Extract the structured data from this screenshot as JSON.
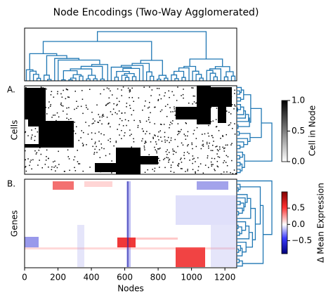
{
  "title": "Node Encodings (Two-Way Agglomerated)",
  "chart_data": [
    {
      "type": "heatmap",
      "panel_label": "A.",
      "ylabel": "Cells",
      "colorbar": {
        "label": "Cell in Node",
        "lim": [
          0,
          1
        ],
        "ticks": [
          {
            "value": 0,
            "label": "0.0"
          },
          0.5,
          {
            "value": 1,
            "label": "1.0"
          }
        ]
      }
    },
    {
      "type": "heatmap",
      "panel_label": "B.",
      "ylabel": "Genes",
      "xlabel": "Nodes",
      "xlim": [
        0,
        1271
      ],
      "xticks": [
        0,
        200,
        400,
        600,
        800,
        1000,
        1200
      ],
      "colorbar": {
        "label": "Δ Mean Expression",
        "lim": [
          -0.9,
          1.0
        ],
        "ticks": [
          {
            "value": -0.5,
            "label": "−0.5"
          },
          {
            "value": 0,
            "label": "0.0"
          },
          0.5
        ]
      }
    }
  ]
}
